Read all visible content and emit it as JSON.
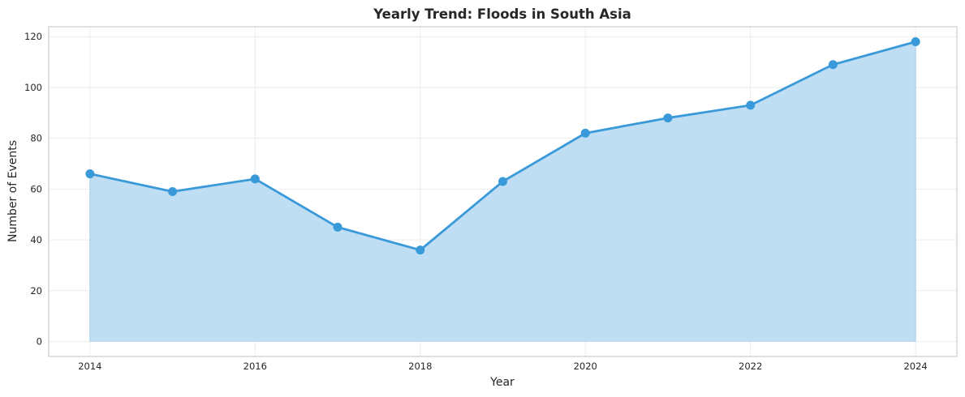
{
  "chart_data": {
    "type": "area",
    "title": "Yearly Trend: Floods in South Asia",
    "xlabel": "Year",
    "ylabel": "Number of Events",
    "x": [
      2014,
      2015,
      2016,
      2017,
      2018,
      2019,
      2020,
      2021,
      2022,
      2023,
      2024
    ],
    "series": [
      {
        "values": [
          66,
          59,
          64,
          45,
          36,
          63,
          82,
          88,
          93,
          109,
          118
        ],
        "color": "#3a9ad9",
        "fill_color": "#c0def3",
        "markers": true
      }
    ],
    "xlim": [
      2013.5,
      2024.5
    ],
    "ylim": [
      -5.9,
      123.9
    ],
    "xticks": [
      2014,
      2016,
      2018,
      2020,
      2022,
      2024
    ],
    "yticks": [
      0,
      20,
      40,
      60,
      80,
      100,
      120
    ],
    "grid": true,
    "legend": "none"
  }
}
